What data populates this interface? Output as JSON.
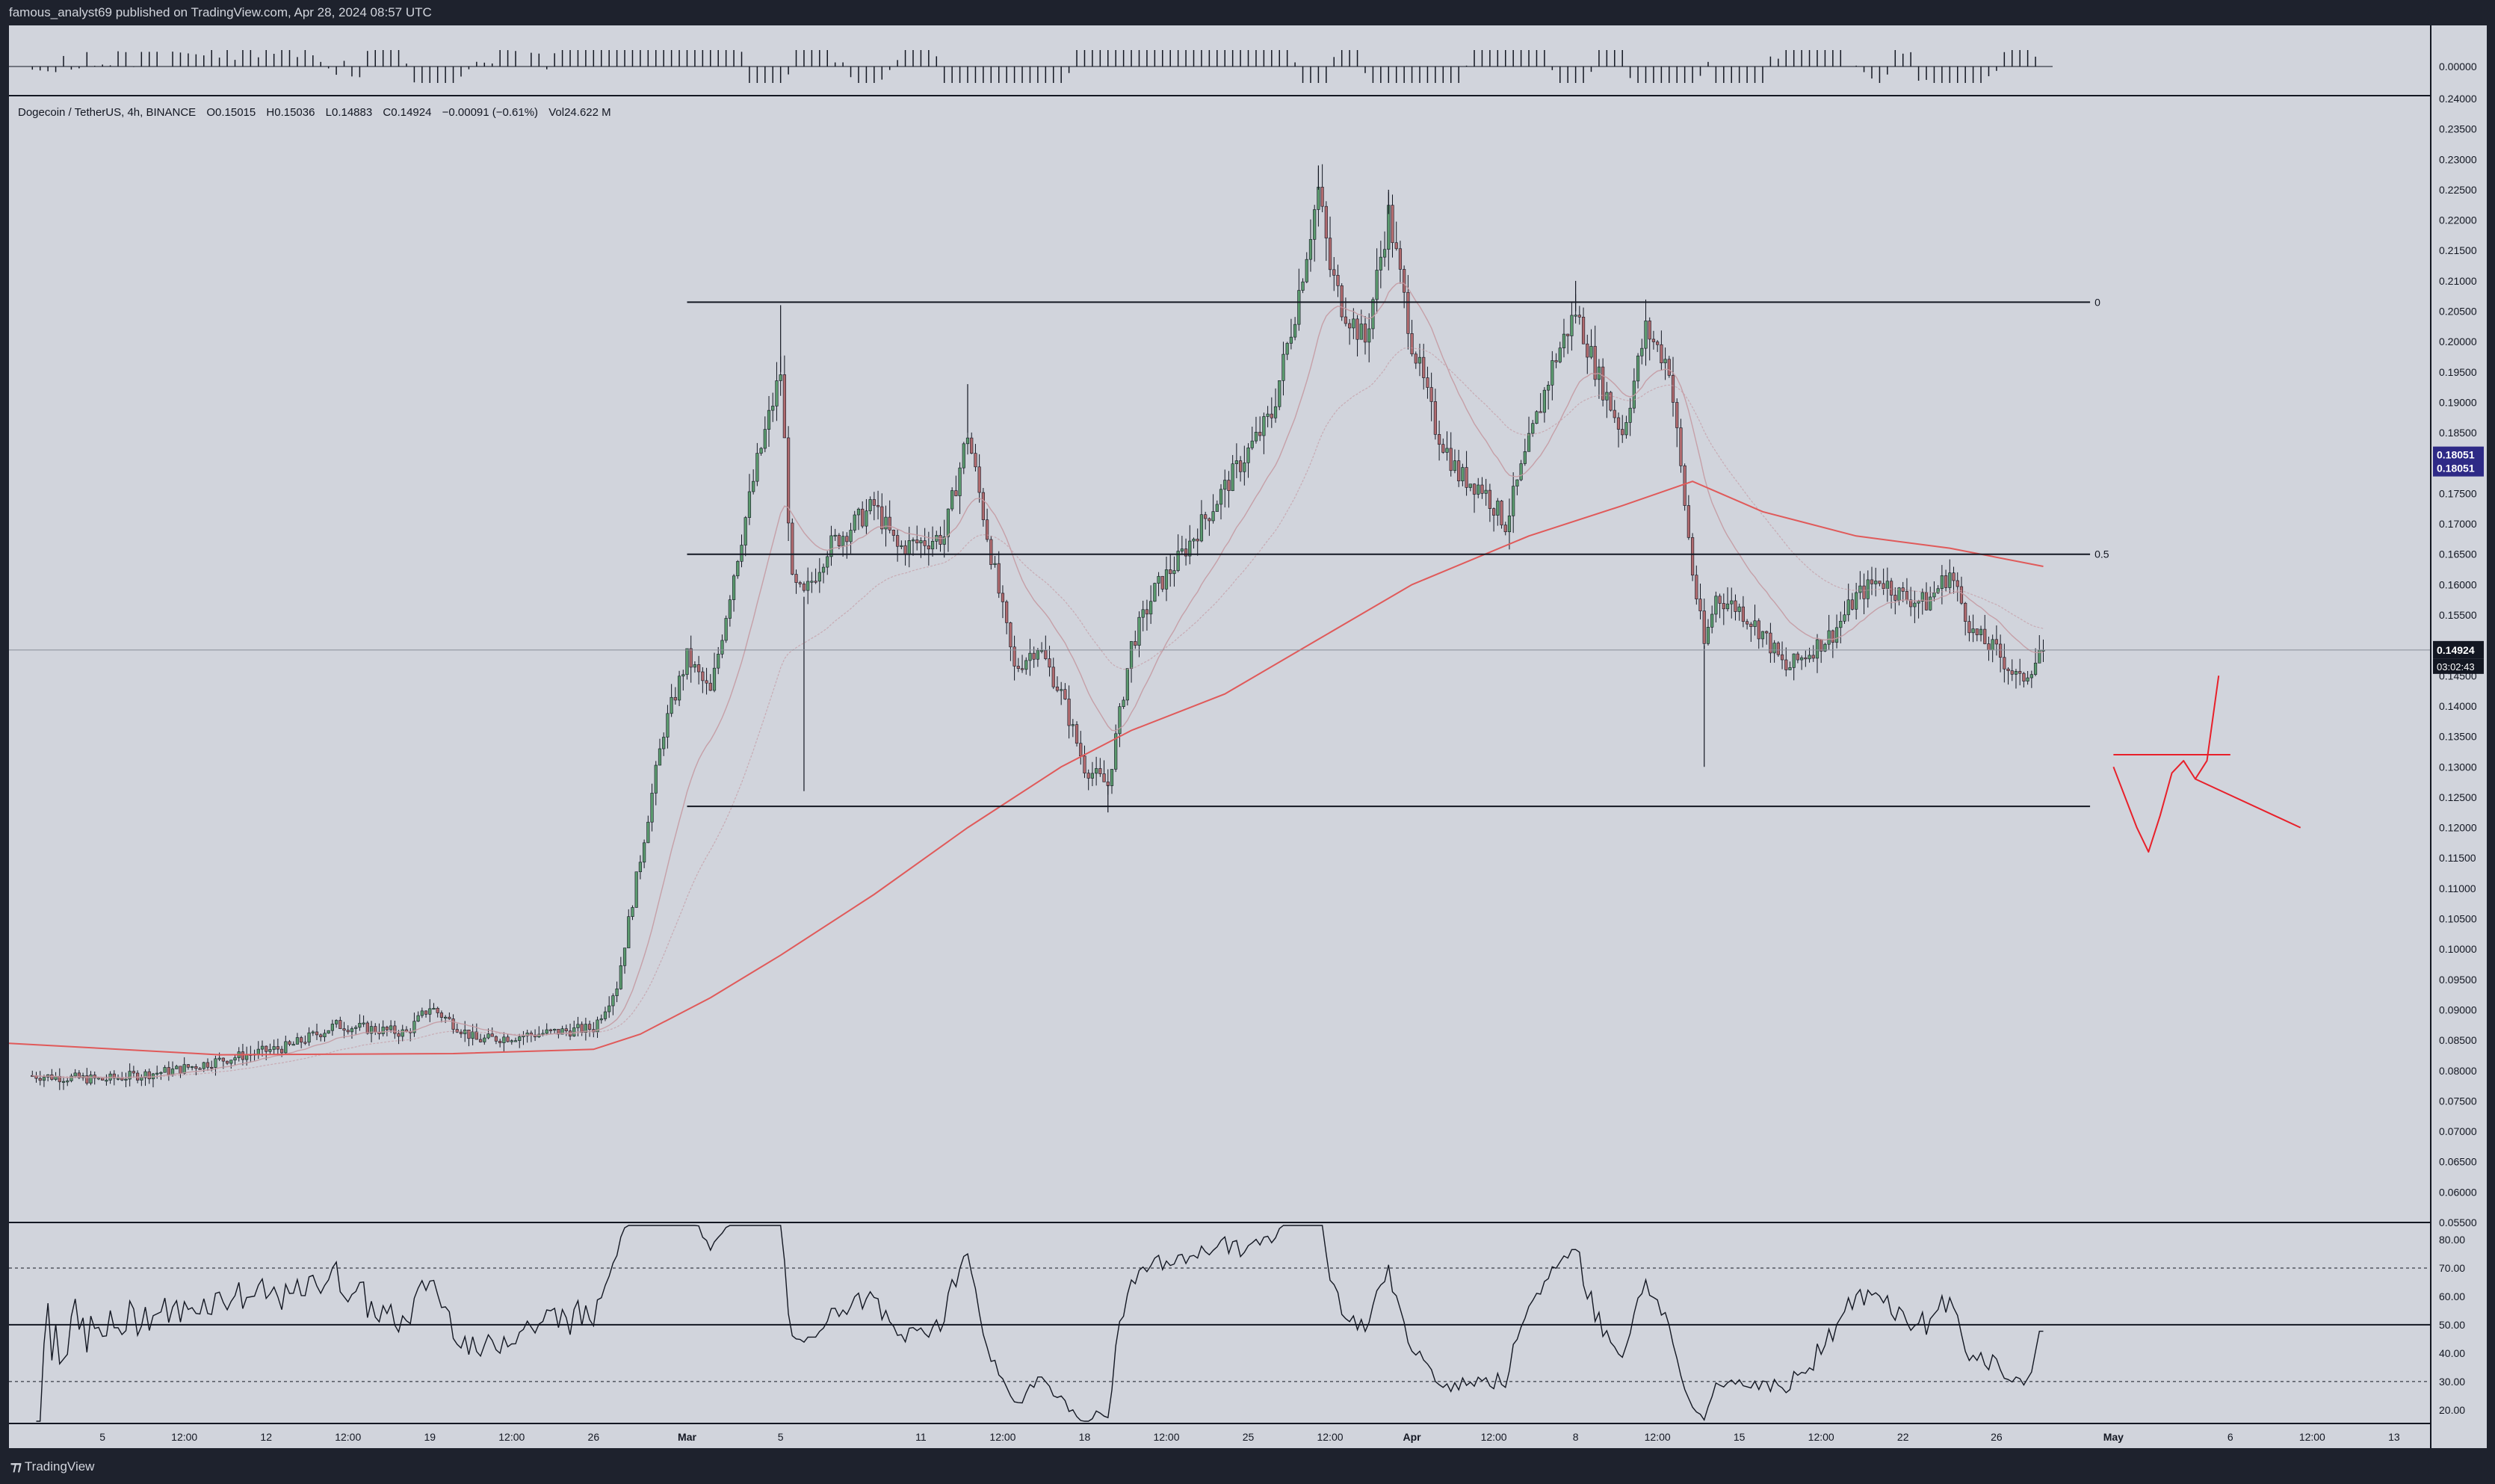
{
  "header": {
    "publish_line": "famous_analyst69 published on TradingView.com, Apr 28, 2024 08:57 UTC"
  },
  "legend": {
    "symbol": "Dogecoin / TetherUS, 4h, BINANCE",
    "open": "O0.15015",
    "high": "H0.15036",
    "low": "L0.14883",
    "close": "C0.14924",
    "change": "−0.00091 (−0.61%)",
    "volume": "Vol24.622 M"
  },
  "footer": {
    "brand": "TradingView"
  },
  "colors": {
    "background": "#d1d4dc",
    "frame": "#1e222d",
    "up_candle": "#5b9a6e",
    "down_candle": "#b06a6e",
    "ma_200": "#e05a5a",
    "ma_short": "#c49aa2",
    "drawing": "#e8202a",
    "hline": "#131722",
    "price_badge": "#131722",
    "alert_badge": "#2e2a86"
  },
  "chart_data": {
    "type": "candlestick",
    "symbol": "Dogecoin / TetherUS",
    "interval": "4h",
    "exchange": "BINANCE",
    "price_axis": {
      "ylim": [
        0.055,
        0.24
      ],
      "ticks": [
        "0.24000",
        "0.23500",
        "0.23000",
        "0.22500",
        "0.22000",
        "0.21500",
        "0.21000",
        "0.20500",
        "0.20000",
        "0.19500",
        "0.19000",
        "0.18500",
        "0.18000",
        "0.17500",
        "0.17000",
        "0.16500",
        "0.16000",
        "0.15500",
        "0.15000",
        "0.14500",
        "0.14000",
        "0.13500",
        "0.13000",
        "0.12500",
        "0.12000",
        "0.11500",
        "0.11000",
        "0.10500",
        "0.10000",
        "0.09500",
        "0.09000",
        "0.08500",
        "0.08000",
        "0.07500",
        "0.07000",
        "0.06500",
        "0.06000",
        "0.05500"
      ]
    },
    "time_axis": {
      "labels": [
        "5",
        "12:00",
        "12",
        "12:00",
        "19",
        "12:00",
        "26",
        "Mar",
        "5",
        "11",
        "12:00",
        "18",
        "12:00",
        "25",
        "12:00",
        "Apr",
        "12:00",
        "8",
        "12:00",
        "15",
        "12:00",
        "22",
        "26",
        "May",
        "6",
        "12:00",
        "13"
      ]
    },
    "anchors": [
      {
        "date": "Feb 2",
        "price": 0.0792
      },
      {
        "date": "Feb 5",
        "price": 0.0785
      },
      {
        "date": "Feb 8",
        "price": 0.08
      },
      {
        "date": "Feb 11",
        "price": 0.0825
      },
      {
        "date": "Feb 13",
        "price": 0.084
      },
      {
        "date": "Feb 15",
        "price": 0.0875
      },
      {
        "date": "Feb 18",
        "price": 0.0862
      },
      {
        "date": "Feb 19",
        "price": 0.0905
      },
      {
        "date": "Feb 21",
        "price": 0.085
      },
      {
        "date": "Feb 23",
        "price": 0.0858
      },
      {
        "date": "Feb 26",
        "price": 0.087
      },
      {
        "date": "Feb 27",
        "price": 0.094
      },
      {
        "date": "Feb 28",
        "price": 0.115
      },
      {
        "date": "Feb 29",
        "price": 0.136
      },
      {
        "date": "Mar 1",
        "price": 0.148
      },
      {
        "date": "Mar 2",
        "price": 0.142
      },
      {
        "date": "Mar 3",
        "price": 0.162
      },
      {
        "date": "Mar 4",
        "price": 0.18
      },
      {
        "date": "Mar 5",
        "price": 0.195
      },
      {
        "date": "Mar 5 12:00",
        "price": 0.16
      },
      {
        "date": "Mar 6",
        "price": 0.158
      },
      {
        "date": "Mar 7",
        "price": 0.166
      },
      {
        "date": "Mar 9",
        "price": 0.173
      },
      {
        "date": "Mar 10",
        "price": 0.166
      },
      {
        "date": "Mar 12",
        "price": 0.168
      },
      {
        "date": "Mar 13",
        "price": 0.185
      },
      {
        "date": "Mar 14",
        "price": 0.165
      },
      {
        "date": "Mar 15",
        "price": 0.146
      },
      {
        "date": "Mar 16",
        "price": 0.15
      },
      {
        "date": "Mar 17",
        "price": 0.142
      },
      {
        "date": "Mar 18",
        "price": 0.13
      },
      {
        "date": "Mar 19",
        "price": 0.127
      },
      {
        "date": "Mar 20",
        "price": 0.15
      },
      {
        "date": "Mar 21",
        "price": 0.159
      },
      {
        "date": "Mar 22",
        "price": 0.164
      },
      {
        "date": "Mar 23",
        "price": 0.17
      },
      {
        "date": "Mar 24",
        "price": 0.176
      },
      {
        "date": "Mar 25",
        "price": 0.182
      },
      {
        "date": "Mar 26",
        "price": 0.188
      },
      {
        "date": "Mar 27",
        "price": 0.205
      },
      {
        "date": "Mar 28",
        "price": 0.225
      },
      {
        "date": "Mar 28 12:00",
        "price": 0.212
      },
      {
        "date": "Mar 29",
        "price": 0.206
      },
      {
        "date": "Mar 30",
        "price": 0.2
      },
      {
        "date": "Mar 31",
        "price": 0.221
      },
      {
        "date": "Apr 1",
        "price": 0.2
      },
      {
        "date": "Apr 2",
        "price": 0.186
      },
      {
        "date": "Apr 3",
        "price": 0.178
      },
      {
        "date": "Apr 4",
        "price": 0.176
      },
      {
        "date": "Apr 5",
        "price": 0.17
      },
      {
        "date": "Apr 6",
        "price": 0.183
      },
      {
        "date": "Apr 7",
        "price": 0.196
      },
      {
        "date": "Apr 8",
        "price": 0.205
      },
      {
        "date": "Apr 9",
        "price": 0.194
      },
      {
        "date": "Apr 10",
        "price": 0.185
      },
      {
        "date": "Apr 11",
        "price": 0.202
      },
      {
        "date": "Apr 12",
        "price": 0.196
      },
      {
        "date": "Apr 13",
        "price": 0.162
      },
      {
        "date": "Apr 13 12:00",
        "price": 0.15
      },
      {
        "date": "Apr 14",
        "price": 0.158
      },
      {
        "date": "Apr 15",
        "price": 0.156
      },
      {
        "date": "Apr 16",
        "price": 0.152
      },
      {
        "date": "Apr 17",
        "price": 0.146
      },
      {
        "date": "Apr 18",
        "price": 0.149
      },
      {
        "date": "Apr 19",
        "price": 0.152
      },
      {
        "date": "Apr 20",
        "price": 0.158
      },
      {
        "date": "Apr 21",
        "price": 0.161
      },
      {
        "date": "Apr 22",
        "price": 0.158
      },
      {
        "date": "Apr 23",
        "price": 0.157
      },
      {
        "date": "Apr 24",
        "price": 0.162
      },
      {
        "date": "Apr 25",
        "price": 0.152
      },
      {
        "date": "Apr 26",
        "price": 0.149
      },
      {
        "date": "Apr 27",
        "price": 0.144
      },
      {
        "date": "Apr 28",
        "price": 0.1492
      }
    ],
    "spikes": [
      {
        "date": "Mar 5",
        "high": 0.206
      },
      {
        "date": "Mar 28",
        "high": 0.229
      },
      {
        "date": "Mar 31",
        "high": 0.225
      },
      {
        "date": "Apr 8",
        "high": 0.21
      },
      {
        "date": "Apr 13 12:00",
        "low": 0.13
      },
      {
        "date": "Mar 19",
        "low": 0.1225
      },
      {
        "date": "Mar 6",
        "low": 0.126
      },
      {
        "date": "Mar 13",
        "high": 0.193
      }
    ],
    "ma_200": [
      {
        "date": "Feb 1",
        "price": 0.0845
      },
      {
        "date": "Feb 10",
        "price": 0.0826
      },
      {
        "date": "Feb 20",
        "price": 0.0828
      },
      {
        "date": "Feb 26",
        "price": 0.0835
      },
      {
        "date": "Feb 28",
        "price": 0.086
      },
      {
        "date": "Mar 2",
        "price": 0.092
      },
      {
        "date": "Mar 5",
        "price": 0.099
      },
      {
        "date": "Mar 9",
        "price": 0.109
      },
      {
        "date": "Mar 13",
        "price": 0.12
      },
      {
        "date": "Mar 17",
        "price": 0.13
      },
      {
        "date": "Mar 20",
        "price": 0.136
      },
      {
        "date": "Mar 24",
        "price": 0.142
      },
      {
        "date": "Mar 28",
        "price": 0.151
      },
      {
        "date": "Apr 1",
        "price": 0.16
      },
      {
        "date": "Apr 6",
        "price": 0.168
      },
      {
        "date": "Apr 10",
        "price": 0.173
      },
      {
        "date": "Apr 13",
        "price": 0.177
      },
      {
        "date": "Apr 16",
        "price": 0.172
      },
      {
        "date": "Apr 20",
        "price": 0.168
      },
      {
        "date": "Apr 24",
        "price": 0.166
      },
      {
        "date": "Apr 28",
        "price": 0.163
      }
    ],
    "fib_levels": [
      {
        "label": "0",
        "price": 0.2065
      },
      {
        "label": "0.5",
        "price": 0.165
      },
      {
        "label": "",
        "price": 0.1235
      }
    ],
    "last_price": {
      "value": "0.14924",
      "countdown": "03:02:43",
      "price": 0.14924
    },
    "alert_price": {
      "value": "0.18051",
      "price": 0.18051
    },
    "rsi": {
      "ylim": [
        16,
        85
      ],
      "ticks": [
        "80.00",
        "70.00",
        "60.00",
        "50.00",
        "40.00",
        "30.00",
        "20.00"
      ],
      "levels": [
        70,
        50,
        30
      ]
    },
    "projection": {
      "hline_price": 0.132,
      "path": [
        {
          "date": "May 1",
          "price": 0.13
        },
        {
          "date": "May 2",
          "price": 0.12
        },
        {
          "date": "May 2 12:00",
          "price": 0.116
        },
        {
          "date": "May 3",
          "price": 0.122
        },
        {
          "date": "May 3 12:00",
          "price": 0.129
        },
        {
          "date": "May 4",
          "price": 0.131
        },
        {
          "date": "May 4 12:00",
          "price": 0.128
        },
        {
          "date": "May 5",
          "price": 0.131
        },
        {
          "date": "May 5 12:00",
          "price": 0.145
        }
      ],
      "arrow": [
        {
          "date": "May 4 12:00",
          "price": 0.128
        },
        {
          "date": "May 9",
          "price": 0.12
        }
      ]
    }
  }
}
